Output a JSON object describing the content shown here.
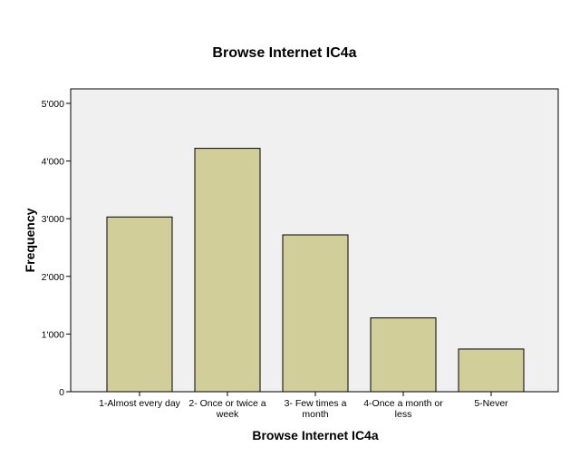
{
  "chart_data": {
    "type": "bar",
    "title": "Browse Internet IC4a",
    "xlabel": "Browse Internet IC4a",
    "ylabel": "Frequency",
    "categories": [
      [
        "1-Almost every day"
      ],
      [
        "2- Once or twice a",
        "week"
      ],
      [
        "3- Few times a",
        "month"
      ],
      [
        "4-Once a month or",
        "less"
      ],
      [
        "5-Never"
      ]
    ],
    "values": [
      3030,
      4220,
      2720,
      1280,
      740
    ],
    "ylim": [
      0,
      5000
    ],
    "yticks": [
      {
        "value": 0,
        "label": "0"
      },
      {
        "value": 1000,
        "label": "1'000"
      },
      {
        "value": 2000,
        "label": "2'000"
      },
      {
        "value": 3000,
        "label": "3'000"
      },
      {
        "value": 4000,
        "label": "4'000"
      },
      {
        "value": 5000,
        "label": "5'000"
      }
    ],
    "grid": false,
    "colors": {
      "bar_fill": "#D2CE9A",
      "bar_stroke": "#000000",
      "plot_background": "#F0F0F0",
      "frame": "#000000"
    }
  }
}
